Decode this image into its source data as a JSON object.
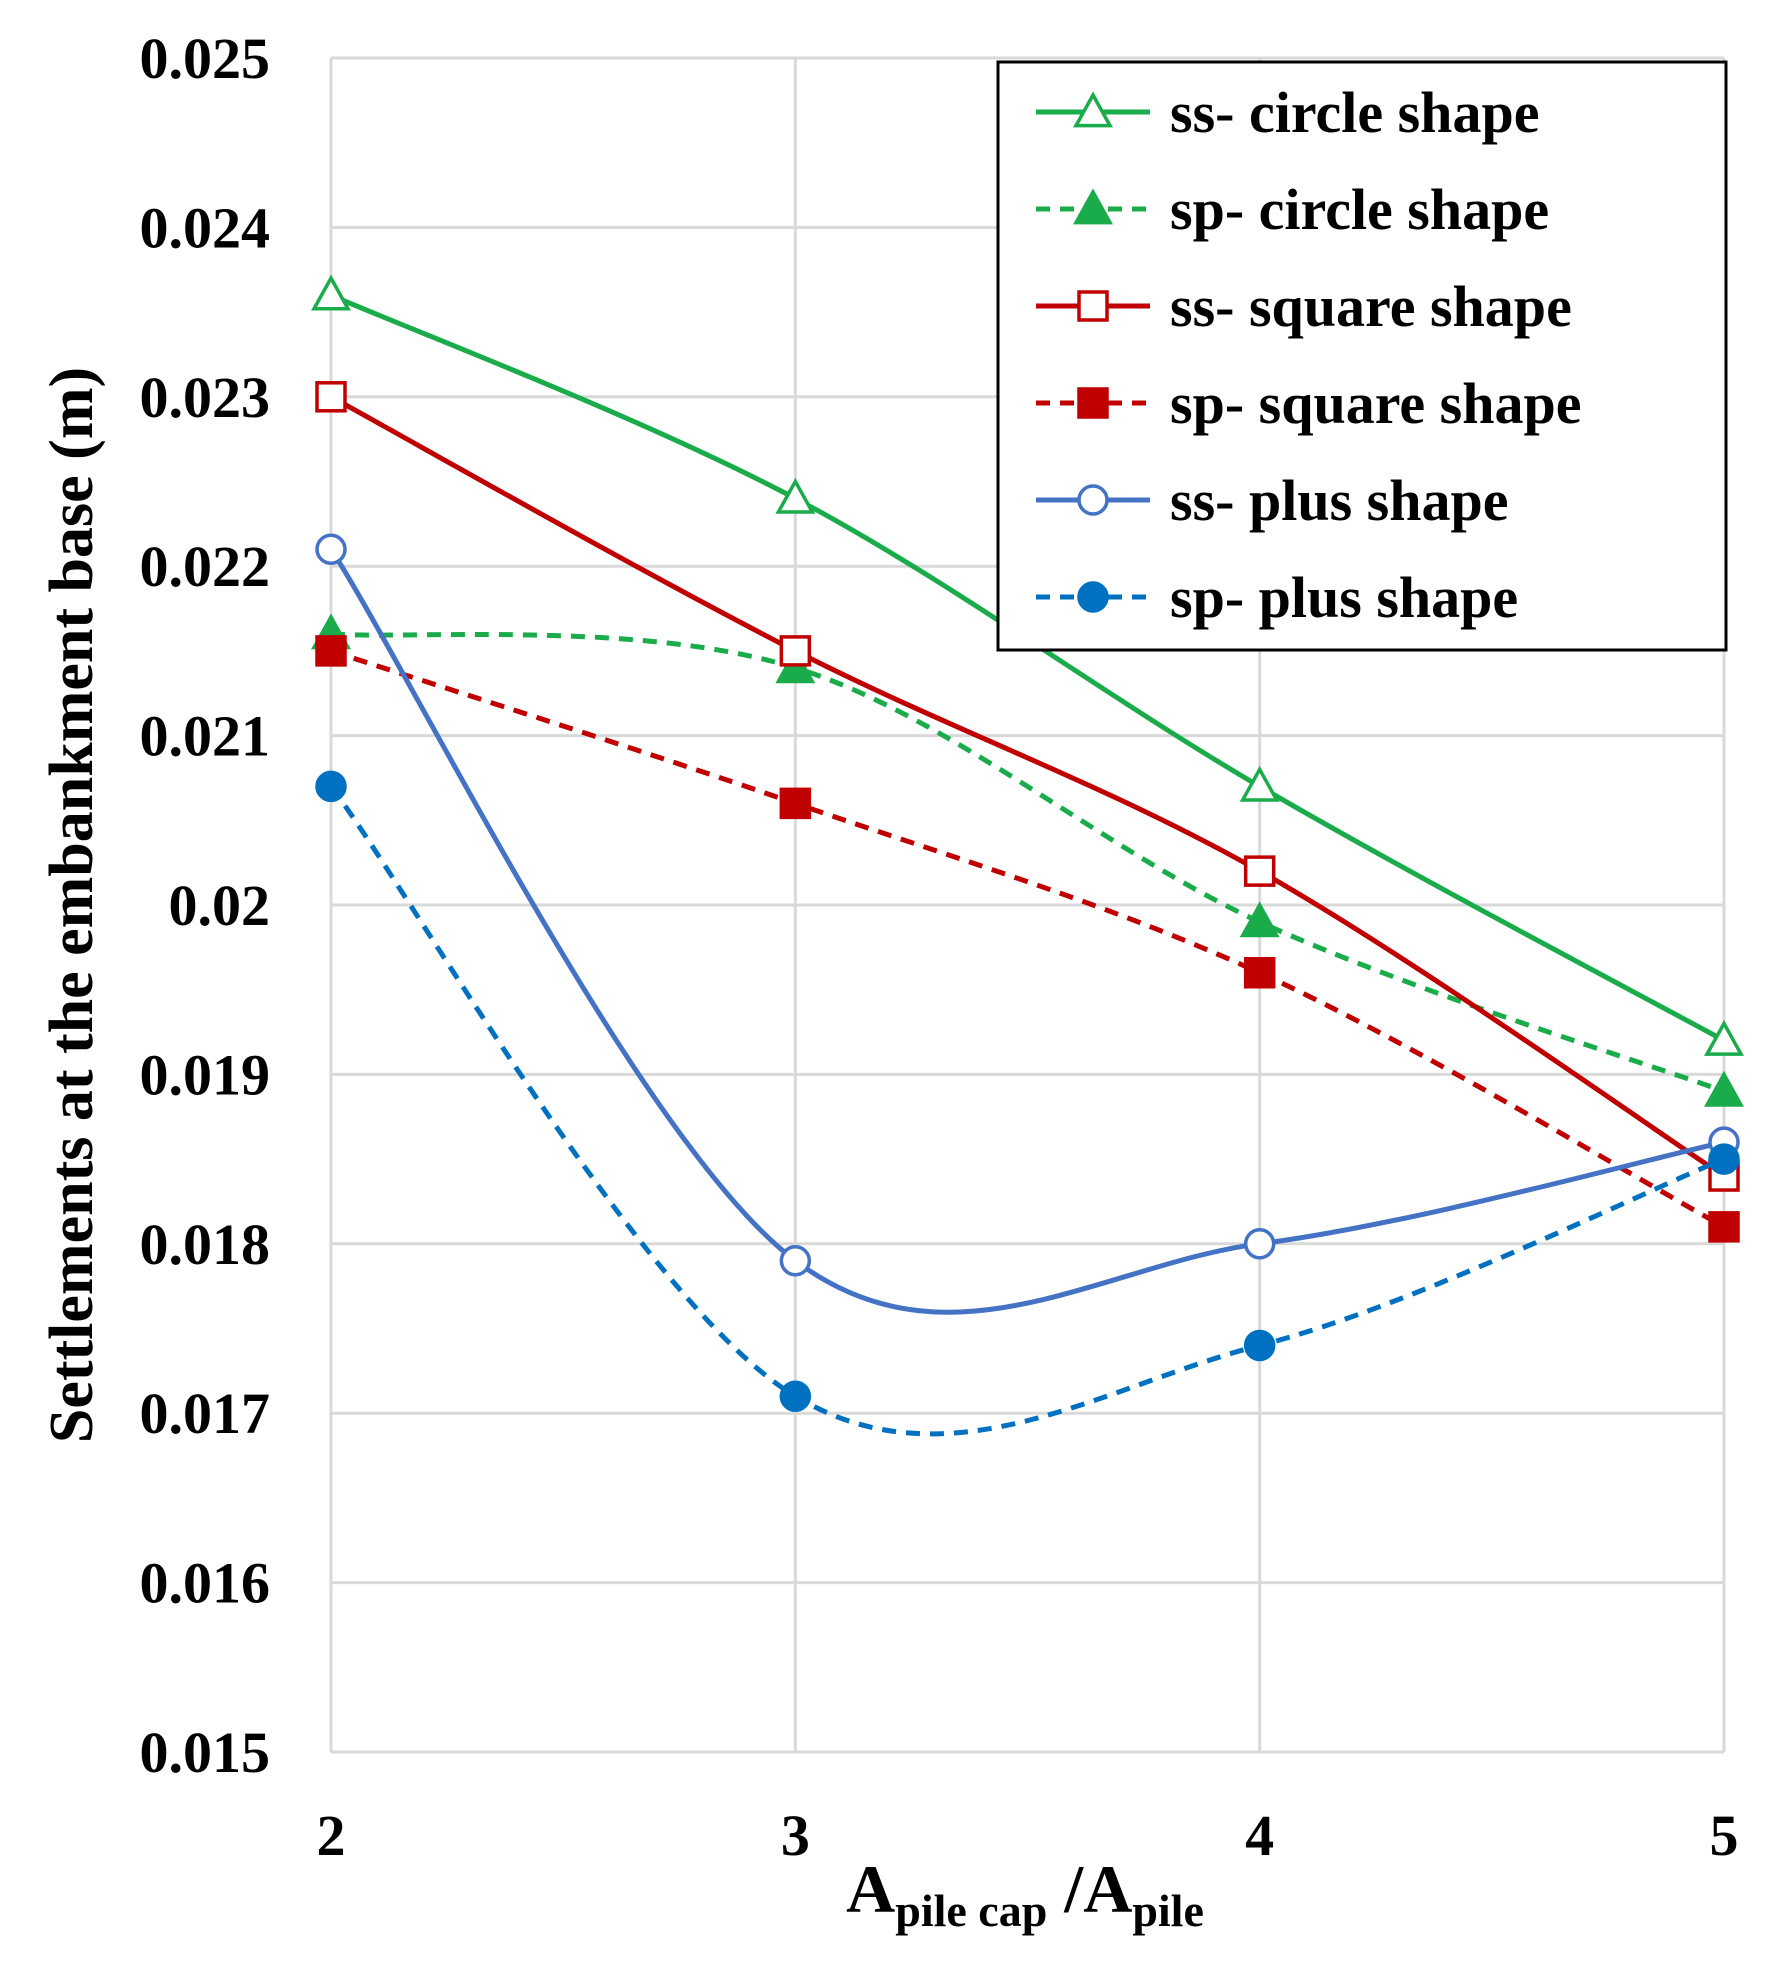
{
  "chart_data": {
    "type": "line",
    "x": [
      2,
      3,
      4,
      5
    ],
    "x_tick_labels": [
      "2",
      "3",
      "4",
      "5"
    ],
    "y_tick_labels": [
      "0.015",
      "0.016",
      "0.017",
      "0.018",
      "0.019",
      "0.02",
      "0.021",
      "0.022",
      "0.023",
      "0.024",
      "0.025"
    ],
    "xlim": [
      2,
      5
    ],
    "ylim": [
      0.015,
      0.025
    ],
    "grid": true,
    "legend_position": "top-right",
    "ylabel": "Settlements at the embankment base (m)",
    "xlabel": {
      "main_1": "A",
      "sub_1": "pile cap",
      "sep": " /",
      "main_2": "A",
      "sub_2": "pile"
    },
    "series": [
      {
        "name": "ss- circle shape",
        "color": "#1aab4b",
        "dash": "solid",
        "marker": "triangle-open",
        "values": [
          0.0236,
          0.0224,
          0.0207,
          0.0192
        ]
      },
      {
        "name": "sp- circle shape",
        "color": "#1aab4b",
        "dash": "dashed",
        "marker": "triangle-filled",
        "values": [
          0.0216,
          0.0214,
          0.0199,
          0.0189
        ]
      },
      {
        "name": "ss- square shape",
        "color": "#c00000",
        "dash": "solid",
        "marker": "square-open",
        "values": [
          0.023,
          0.0215,
          0.0202,
          0.0184
        ]
      },
      {
        "name": "sp- square shape",
        "color": "#c00000",
        "dash": "dashed",
        "marker": "square-filled",
        "values": [
          0.0215,
          0.0206,
          0.0196,
          0.0181
        ]
      },
      {
        "name": "ss- plus shape",
        "color": "#4472c4",
        "dash": "solid",
        "marker": "circle-open",
        "values": [
          0.0221,
          0.0179,
          0.018,
          0.0186
        ]
      },
      {
        "name": "sp- plus shape",
        "color": "#0070c0",
        "dash": "dashed",
        "marker": "circle-filled",
        "values": [
          0.0207,
          0.0171,
          0.0174,
          0.0185
        ]
      }
    ]
  }
}
